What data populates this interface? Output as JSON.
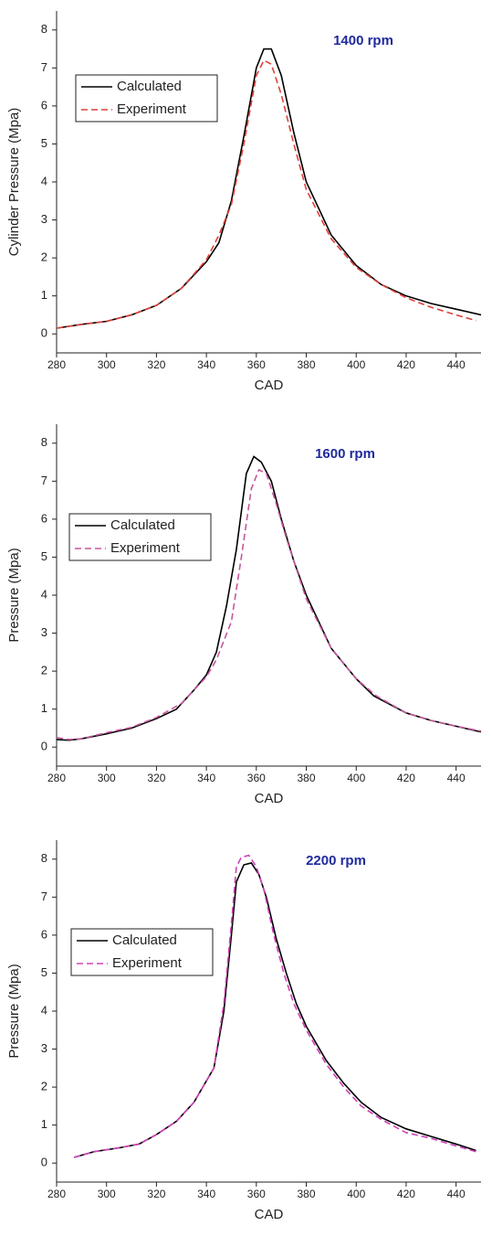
{
  "chart_data": [
    {
      "type": "line",
      "annotation": "1400 rpm",
      "x_label": "CAD",
      "y_label": "Cylinder Pressure (Mpa)",
      "xlim": [
        280,
        450
      ],
      "ylim": [
        -0.5,
        8.5
      ],
      "xticks": [
        280,
        300,
        320,
        340,
        360,
        380,
        400,
        420,
        440
      ],
      "yticks": [
        0,
        1,
        2,
        3,
        4,
        5,
        6,
        7,
        8
      ],
      "legend": "upper left",
      "series": [
        {
          "name": "Calculated",
          "color": "#000000",
          "dash": false,
          "x": [
            280,
            290,
            300,
            310,
            320,
            330,
            340,
            345,
            350,
            355,
            360,
            363,
            366,
            370,
            375,
            380,
            390,
            400,
            410,
            420,
            430,
            440,
            450
          ],
          "values": [
            0.15,
            0.25,
            0.33,
            0.5,
            0.75,
            1.2,
            1.9,
            2.4,
            3.5,
            5.2,
            7.0,
            7.5,
            7.5,
            6.8,
            5.3,
            4.0,
            2.6,
            1.8,
            1.3,
            1.0,
            0.8,
            0.65,
            0.5
          ]
        },
        {
          "name": "Experiment",
          "color": "#e0403a",
          "dash": true,
          "x": [
            280,
            290,
            300,
            310,
            320,
            330,
            340,
            345,
            350,
            355,
            360,
            363,
            366,
            370,
            375,
            380,
            390,
            400,
            410,
            420,
            430,
            440,
            448
          ],
          "values": [
            0.15,
            0.25,
            0.33,
            0.5,
            0.75,
            1.2,
            1.95,
            2.6,
            3.4,
            5.0,
            6.8,
            7.2,
            7.1,
            6.3,
            5.0,
            3.8,
            2.5,
            1.75,
            1.3,
            0.95,
            0.7,
            0.5,
            0.35
          ]
        }
      ]
    },
    {
      "type": "line",
      "annotation": "1600 rpm",
      "x_label": "CAD",
      "y_label": "Pressure (Mpa)",
      "xlim": [
        280,
        450
      ],
      "ylim": [
        -0.5,
        8.5
      ],
      "xticks": [
        280,
        300,
        320,
        340,
        360,
        380,
        400,
        420,
        440
      ],
      "yticks": [
        0,
        1,
        2,
        3,
        4,
        5,
        6,
        7,
        8
      ],
      "legend": "upper left",
      "series": [
        {
          "name": "Calculated",
          "color": "#000000",
          "dash": false,
          "x": [
            280,
            285,
            290,
            300,
            310,
            320,
            328,
            335,
            340,
            344,
            348,
            352,
            356,
            359,
            362,
            366,
            370,
            375,
            380,
            390,
            400,
            407,
            420,
            430,
            440,
            450
          ],
          "values": [
            0.2,
            0.18,
            0.22,
            0.35,
            0.5,
            0.75,
            1.0,
            1.5,
            1.9,
            2.5,
            3.7,
            5.2,
            7.2,
            7.65,
            7.5,
            7.0,
            6.0,
            4.9,
            4.0,
            2.6,
            1.8,
            1.35,
            0.9,
            0.7,
            0.55,
            0.4
          ]
        },
        {
          "name": "Experiment",
          "color": "#c8559e",
          "dash": true,
          "x": [
            280,
            285,
            290,
            300,
            310,
            320,
            330,
            340,
            344,
            350,
            354,
            358,
            361,
            364,
            368,
            372,
            376,
            380,
            390,
            400,
            408,
            420,
            430,
            440,
            450
          ],
          "values": [
            0.25,
            0.2,
            0.22,
            0.38,
            0.52,
            0.78,
            1.15,
            1.85,
            2.3,
            3.3,
            5.0,
            6.8,
            7.3,
            7.2,
            6.4,
            5.5,
            4.7,
            3.9,
            2.6,
            1.8,
            1.35,
            0.9,
            0.7,
            0.55,
            0.42
          ]
        }
      ]
    },
    {
      "type": "line",
      "annotation": "2200 rpm",
      "x_label": "CAD",
      "y_label": "Pressure (Mpa)",
      "xlim": [
        280,
        450
      ],
      "ylim": [
        -0.5,
        8.5
      ],
      "xticks": [
        280,
        300,
        320,
        340,
        360,
        380,
        400,
        420,
        440
      ],
      "yticks": [
        0,
        1,
        2,
        3,
        4,
        5,
        6,
        7,
        8
      ],
      "legend": "upper left",
      "series": [
        {
          "name": "Calculated",
          "color": "#000000",
          "dash": false,
          "x": [
            287,
            295,
            305,
            313,
            320,
            328,
            335,
            343,
            347,
            350,
            352,
            355,
            358,
            361,
            364,
            368,
            372,
            376,
            380,
            388,
            395,
            402,
            410,
            420,
            430,
            440,
            448
          ],
          "values": [
            0.15,
            0.3,
            0.4,
            0.5,
            0.75,
            1.1,
            1.6,
            2.5,
            4.0,
            6.0,
            7.4,
            7.85,
            7.9,
            7.6,
            7.0,
            5.9,
            5.0,
            4.2,
            3.6,
            2.7,
            2.1,
            1.6,
            1.2,
            0.9,
            0.7,
            0.5,
            0.33
          ]
        },
        {
          "name": "Experiment",
          "color": "#d040b8",
          "dash": true,
          "x": [
            287,
            295,
            305,
            313,
            320,
            328,
            335,
            343,
            347,
            350,
            352,
            354,
            357,
            360,
            363,
            367,
            371,
            375,
            380,
            388,
            395,
            402,
            410,
            420,
            430,
            440,
            448
          ],
          "values": [
            0.15,
            0.3,
            0.4,
            0.5,
            0.75,
            1.1,
            1.6,
            2.5,
            4.2,
            6.3,
            7.8,
            8.05,
            8.1,
            7.8,
            7.2,
            6.0,
            5.0,
            4.2,
            3.5,
            2.6,
            2.0,
            1.5,
            1.15,
            0.8,
            0.65,
            0.45,
            0.3
          ]
        }
      ]
    }
  ]
}
